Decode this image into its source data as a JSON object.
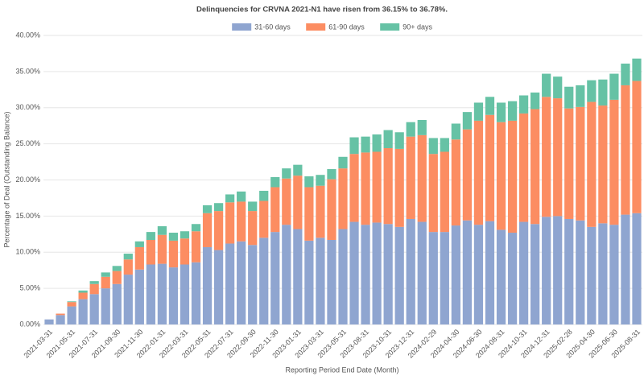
{
  "chart_data": {
    "type": "bar",
    "stacked": true,
    "title": "Delinquencies for CRVNA 2021-N1 have risen from 36.15% to 36.78%.",
    "x_label": "Reporting Period End Date (Month)",
    "y_label": "Percentage of Deal (Outstanding Balance)",
    "categories": [
      "2021-03-31",
      null,
      "2021-05-31",
      null,
      "2021-07-31",
      null,
      "2021-09-30",
      null,
      "2021-11-30",
      null,
      "2022-01-31",
      null,
      "2022-03-31",
      null,
      "2022-05-31",
      null,
      "2022-07-31",
      null,
      "2022-09-30",
      null,
      "2022-11-30",
      null,
      "2023-01-31",
      null,
      "2023-03-31",
      null,
      "2023-05-31",
      null,
      "2023-08-31",
      null,
      "2023-10-31",
      null,
      "2023-12-31",
      null,
      "2024-02-29",
      null,
      "2024-04-30",
      null,
      "2024-06-30",
      null,
      "2024-08-31",
      null,
      "2024-10-31",
      null,
      "2024-12-31",
      null,
      "2025-02-28",
      null,
      "2025-04-30",
      null,
      "2025-06-30",
      null,
      "2025-08-31"
    ],
    "series": [
      {
        "name": "31-60 days",
        "color": "#8fa5d0",
        "values": [
          0.7,
          1.3,
          2.5,
          3.5,
          4.2,
          5.0,
          5.6,
          6.9,
          7.6,
          8.3,
          8.4,
          7.9,
          8.3,
          8.6,
          10.7,
          10.3,
          11.2,
          11.5,
          11.0,
          12.0,
          12.8,
          13.8,
          13.2,
          11.6,
          12.0,
          11.7,
          13.2,
          14.2,
          13.8,
          14.1,
          13.9,
          13.5,
          14.6,
          14.2,
          12.8,
          12.8,
          13.7,
          14.4,
          13.8,
          14.3,
          13.1,
          12.7,
          14.2,
          13.9,
          14.9,
          15.0,
          14.6,
          14.4,
          13.5,
          14.0,
          13.8,
          15.2,
          15.4
        ]
      },
      {
        "name": "61-90 days",
        "color": "#fc8d62",
        "values": [
          0,
          0.2,
          0.6,
          0.9,
          1.4,
          1.6,
          1.8,
          2.1,
          3.1,
          3.4,
          4.0,
          3.7,
          3.6,
          4.3,
          4.7,
          5.4,
          5.7,
          5.5,
          4.7,
          5.1,
          6.2,
          6.4,
          7.4,
          7.4,
          7.2,
          8.4,
          8.4,
          9.4,
          10.0,
          9.8,
          10.5,
          10.8,
          11.4,
          12.0,
          10.8,
          11.1,
          11.9,
          12.6,
          14.4,
          14.7,
          14.9,
          15.5,
          15.0,
          15.9,
          16.6,
          16.3,
          15.3,
          15.7,
          17.3,
          16.3,
          17.3,
          17.9,
          18.3
        ]
      },
      {
        "name": "90+ days",
        "color": "#66c2a5",
        "values": [
          0,
          0,
          0.1,
          0.3,
          0.4,
          0.6,
          0.7,
          0.8,
          0.8,
          1.1,
          1.2,
          1.1,
          1.0,
          1.0,
          1.1,
          1.1,
          1.1,
          1.4,
          1.3,
          1.4,
          1.4,
          1.4,
          1.5,
          1.5,
          1.5,
          1.4,
          1.6,
          2.3,
          2.2,
          2.4,
          2.5,
          2.3,
          2.0,
          2.1,
          2.2,
          1.9,
          2.2,
          2.4,
          2.5,
          2.5,
          2.7,
          2.7,
          2.5,
          2.3,
          3.2,
          3.0,
          3.0,
          3.0,
          3.0,
          3.6,
          3.6,
          3.0,
          3.1
        ]
      }
    ],
    "ylim": [
      0,
      40
    ],
    "yticks": [
      {
        "value": 0,
        "label": "0.00%"
      },
      {
        "value": 5,
        "label": "5.00%"
      },
      {
        "value": 10,
        "label": "10.00%"
      },
      {
        "value": 15,
        "label": "15.00%"
      },
      {
        "value": 20,
        "label": "20.00%"
      },
      {
        "value": 25,
        "label": "25.00%"
      },
      {
        "value": 30,
        "label": "30.00%"
      },
      {
        "value": 35,
        "label": "35.00%"
      },
      {
        "value": 40,
        "label": "40.00%"
      }
    ],
    "grid": true,
    "legend": "top"
  }
}
